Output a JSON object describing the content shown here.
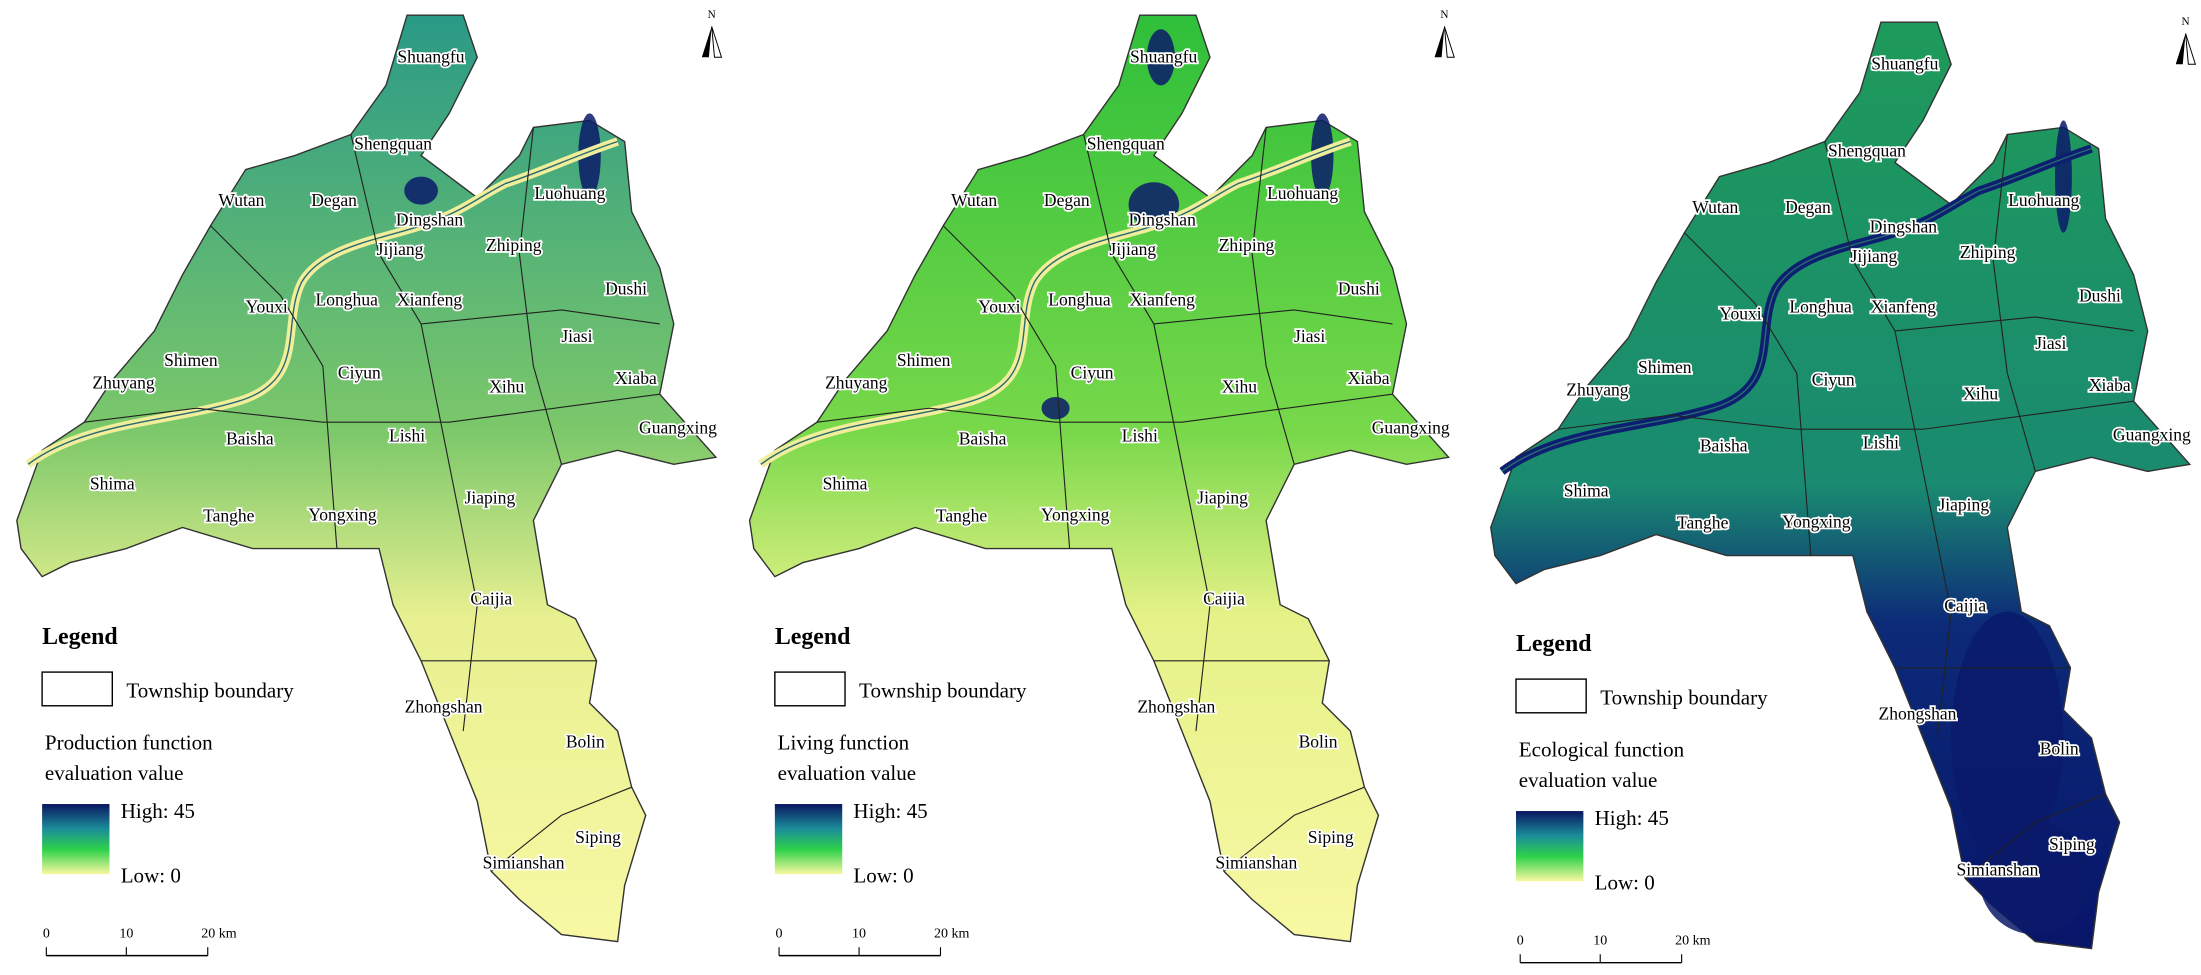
{
  "north_label": "N",
  "township_names": [
    "Shuangfu",
    "Shengquan",
    "Wutan",
    "Degan",
    "Dingshan",
    "Luohuang",
    "Jijiang",
    "Zhiping",
    "Youxi",
    "Longhua",
    "Xianfeng",
    "Dushi",
    "Jiasi",
    "Shimen",
    "Ciyun",
    "Xihu",
    "Xiaba",
    "Zhuyang",
    "Guangxing",
    "Baisha",
    "Lishi",
    "Shima",
    "Jiaping",
    "Tanghe",
    "Yongxing",
    "Caijia",
    "Zhongshan",
    "Bolin",
    "Siping",
    "Simianshan"
  ],
  "panels": [
    {
      "legend": {
        "title": "Legend",
        "boundary": "Township boundary",
        "value_title": [
          "Production function",
          "evaluation value"
        ],
        "high": "High: 45",
        "low": "Low: 0"
      },
      "scale_labels": [
        "0",
        "10",
        "20 km"
      ]
    },
    {
      "legend": {
        "title": "Legend",
        "boundary": "Township boundary",
        "value_title": [
          "Living function",
          "evaluation value"
        ],
        "high": "High: 45",
        "low": "Low: 0"
      },
      "scale_labels": [
        "0",
        "10",
        "20 km"
      ]
    },
    {
      "legend": {
        "title": "Legend",
        "boundary": "Township boundary",
        "value_title": [
          "Ecological function",
          "evaluation value"
        ],
        "high": "High: 45",
        "low": "Low: 0"
      },
      "scale_labels": [
        "0",
        "10",
        "20 km"
      ]
    }
  ]
}
